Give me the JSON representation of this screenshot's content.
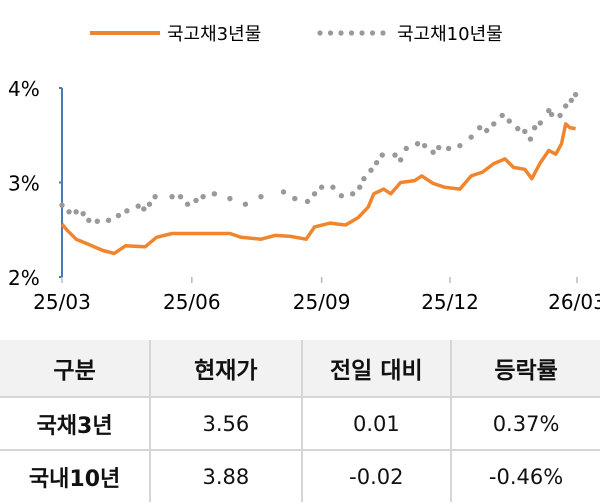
{
  "chart_data": {
    "type": "line",
    "ylim": [
      2,
      4
    ],
    "yticks": [
      "2%",
      "3%",
      "4%"
    ],
    "ytick_values": [
      2,
      3,
      4
    ],
    "xticks": [
      "25/03",
      "25/06",
      "25/09",
      "25/12",
      "26/03"
    ],
    "xtick_dates": [
      "2025-03-01",
      "2025-06-01",
      "2025-09-01",
      "2025-12-01",
      "2026-03-01"
    ],
    "legend_placement": "top",
    "series": [
      {
        "name": "국고채3년물",
        "style": "solid",
        "color": "#f0852d",
        "points": [
          [
            "2025-03-01",
            2.56
          ],
          [
            "2025-03-05",
            2.49
          ],
          [
            "2025-03-11",
            2.4
          ],
          [
            "2025-03-19",
            2.35
          ],
          [
            "2025-03-30",
            2.28
          ],
          [
            "2025-04-07",
            2.25
          ],
          [
            "2025-04-15",
            2.33
          ],
          [
            "2025-04-29",
            2.32
          ],
          [
            "2025-05-07",
            2.42
          ],
          [
            "2025-05-18",
            2.46
          ],
          [
            "2025-06-01",
            2.46
          ],
          [
            "2025-06-12",
            2.46
          ],
          [
            "2025-06-28",
            2.46
          ],
          [
            "2025-07-06",
            2.42
          ],
          [
            "2025-07-20",
            2.4
          ],
          [
            "2025-07-30",
            2.44
          ],
          [
            "2025-08-10",
            2.43
          ],
          [
            "2025-08-21",
            2.4
          ],
          [
            "2025-08-27",
            2.53
          ],
          [
            "2025-09-07",
            2.57
          ],
          [
            "2025-09-18",
            2.55
          ],
          [
            "2025-09-27",
            2.63
          ],
          [
            "2025-10-04",
            2.74
          ],
          [
            "2025-10-08",
            2.88
          ],
          [
            "2025-10-15",
            2.93
          ],
          [
            "2025-10-20",
            2.88
          ],
          [
            "2025-10-27",
            3.0
          ],
          [
            "2025-11-06",
            3.02
          ],
          [
            "2025-11-11",
            3.07
          ],
          [
            "2025-11-19",
            2.99
          ],
          [
            "2025-11-27",
            2.95
          ],
          [
            "2025-12-08",
            2.93
          ],
          [
            "2025-12-16",
            3.07
          ],
          [
            "2025-12-24",
            3.11
          ],
          [
            "2026-01-01",
            3.2
          ],
          [
            "2026-01-09",
            3.25
          ],
          [
            "2026-01-15",
            3.16
          ],
          [
            "2026-01-23",
            3.14
          ],
          [
            "2026-01-28",
            3.04
          ],
          [
            "2026-02-03",
            3.21
          ],
          [
            "2026-02-09",
            3.34
          ],
          [
            "2026-02-14",
            3.3
          ],
          [
            "2026-02-18",
            3.41
          ],
          [
            "2026-02-21",
            3.62
          ],
          [
            "2026-02-24",
            3.58
          ],
          [
            "2026-02-28",
            3.57
          ]
        ]
      },
      {
        "name": "국고채10년물",
        "style": "dotted",
        "color": "#999999",
        "points": [
          [
            "2025-03-01",
            2.76
          ],
          [
            "2025-03-06",
            2.69
          ],
          [
            "2025-03-11",
            2.69
          ],
          [
            "2025-03-16",
            2.67
          ],
          [
            "2025-03-20",
            2.6
          ],
          [
            "2025-03-26",
            2.59
          ],
          [
            "2025-04-03",
            2.6
          ],
          [
            "2025-04-10",
            2.65
          ],
          [
            "2025-04-16",
            2.7
          ],
          [
            "2025-04-24",
            2.75
          ],
          [
            "2025-04-28",
            2.72
          ],
          [
            "2025-05-02",
            2.77
          ],
          [
            "2025-05-06",
            2.85
          ],
          [
            "2025-05-18",
            2.85
          ],
          [
            "2025-05-24",
            2.85
          ],
          [
            "2025-05-29",
            2.77
          ],
          [
            "2025-06-04",
            2.81
          ],
          [
            "2025-06-09",
            2.85
          ],
          [
            "2025-06-17",
            2.88
          ],
          [
            "2025-06-28",
            2.83
          ],
          [
            "2025-07-09",
            2.77
          ],
          [
            "2025-07-20",
            2.85
          ],
          [
            "2025-08-05",
            2.9
          ],
          [
            "2025-08-13",
            2.83
          ],
          [
            "2025-08-22",
            2.8
          ],
          [
            "2025-08-27",
            2.88
          ],
          [
            "2025-09-01",
            2.95
          ],
          [
            "2025-09-09",
            2.95
          ],
          [
            "2025-09-15",
            2.86
          ],
          [
            "2025-09-23",
            2.88
          ],
          [
            "2025-09-28",
            2.95
          ],
          [
            "2025-10-01",
            3.04
          ],
          [
            "2025-10-06",
            3.13
          ],
          [
            "2025-10-10",
            3.21
          ],
          [
            "2025-10-14",
            3.29
          ],
          [
            "2025-10-23",
            3.29
          ],
          [
            "2025-10-27",
            3.24
          ],
          [
            "2025-10-31",
            3.36
          ],
          [
            "2025-11-08",
            3.41
          ],
          [
            "2025-11-13",
            3.39
          ],
          [
            "2025-11-19",
            3.32
          ],
          [
            "2025-11-23",
            3.37
          ],
          [
            "2025-11-30",
            3.36
          ],
          [
            "2025-12-08",
            3.39
          ],
          [
            "2025-12-16",
            3.48
          ],
          [
            "2025-12-22",
            3.58
          ],
          [
            "2025-12-27",
            3.55
          ],
          [
            "2026-01-01",
            3.62
          ],
          [
            "2026-01-07",
            3.71
          ],
          [
            "2026-01-12",
            3.65
          ],
          [
            "2026-01-18",
            3.57
          ],
          [
            "2026-01-23",
            3.54
          ],
          [
            "2026-01-27",
            3.46
          ],
          [
            "2026-01-30",
            3.58
          ],
          [
            "2026-02-03",
            3.63
          ],
          [
            "2026-02-09",
            3.76
          ],
          [
            "2026-02-11",
            3.72
          ],
          [
            "2026-02-17",
            3.71
          ],
          [
            "2026-02-21",
            3.81
          ],
          [
            "2026-02-25",
            3.87
          ],
          [
            "2026-02-28",
            3.93
          ]
        ]
      }
    ]
  },
  "table": {
    "headers": [
      "구분",
      "현재가",
      "전일 대비",
      "등락률"
    ],
    "rows": [
      [
        "국채3년",
        "3.56",
        "0.01",
        "0.37%"
      ],
      [
        "국내10년",
        "3.88",
        "-0.02",
        "-0.46%"
      ]
    ]
  },
  "colors": {
    "axis": "#4a7ab5",
    "header_bg": "#f2f2f2"
  }
}
